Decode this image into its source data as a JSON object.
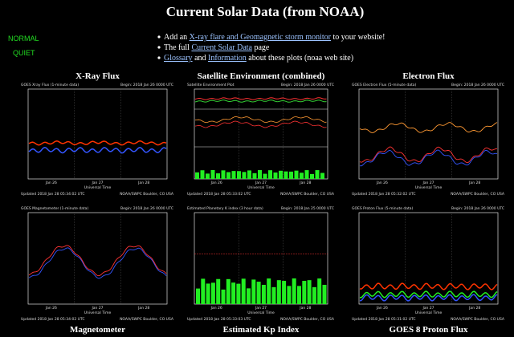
{
  "header": {
    "title": "Current Solar Data (from NOAA)"
  },
  "status": {
    "xray": "NORMAL",
    "geomag": "QUIET"
  },
  "links": [
    {
      "before": "Add an ",
      "link": "X-ray flare and Geomagnetic storm monitor",
      "after": " to your website!"
    },
    {
      "before": "The full ",
      "link": "Current Solar Data",
      "after": " page"
    },
    {
      "link": "Glossary",
      "middle": " and ",
      "link2": "Information",
      "after": " about these plots (noaa web site)"
    }
  ],
  "days": [
    "Jan 26",
    "Jan 27",
    "Jan 28"
  ],
  "xlabel": "Universal Time",
  "panels": [
    {
      "title": "X-Ray Flux",
      "header": "GOES Xray Flux (1-minute data)",
      "begin": "Begin: 2018 Jan 26 0000 UTC",
      "footer": "Updated 2018 Jan 28 05:34:02 UTC",
      "credit": "NOAA/SWPC Boulder, CO USA"
    },
    {
      "title": "Satellite Environment (combined)",
      "header": "Satellite Environment Plot",
      "begin": "Begin: 2018 Jan 26 0000 UTC",
      "footer": "Updated 2018 Jan 28 05:33:02 UTC",
      "credit": "NOAA/SWPC Boulder, CO USA"
    },
    {
      "title": "Electron Flux",
      "header": "GOES Electron Flux (5-minute data)",
      "begin": "Begin: 2018 Jan 26 0000 UTC",
      "footer": "Updated 2018 Jan 28 05:32:02 UTC",
      "credit": "NOAA/SWPC Boulder, CO USA"
    },
    {
      "title": "Magnetometer",
      "header": "GOES Magnetometer (1-minute data)",
      "begin": "Begin: 2018 Jan 26 0000 UTC",
      "footer": "Updated 2018 Jan 28 05:34:02 UTC",
      "credit": "NOAA/SWPC Boulder, CO USA"
    },
    {
      "title": "Estimated Kp Index",
      "header": "Estimated Planetary K index (3 hour data)",
      "begin": "Begin: 2018 Jan 25 0000 UTC",
      "footer": "Updated 2018 Jan 28 05:33:03 UTC",
      "credit": "NOAA/SWPC Boulder, CO USA"
    },
    {
      "title": "GOES 8 Proton Flux",
      "header": "GOES Proton Flux (5-minute data)",
      "begin": "Begin: 2018 Jan 26 0000 UTC",
      "footer": "Updated 2018 Jan 28 05:31:02 UTC",
      "credit": "NOAA/SWPC Boulder, CO USA"
    }
  ]
}
